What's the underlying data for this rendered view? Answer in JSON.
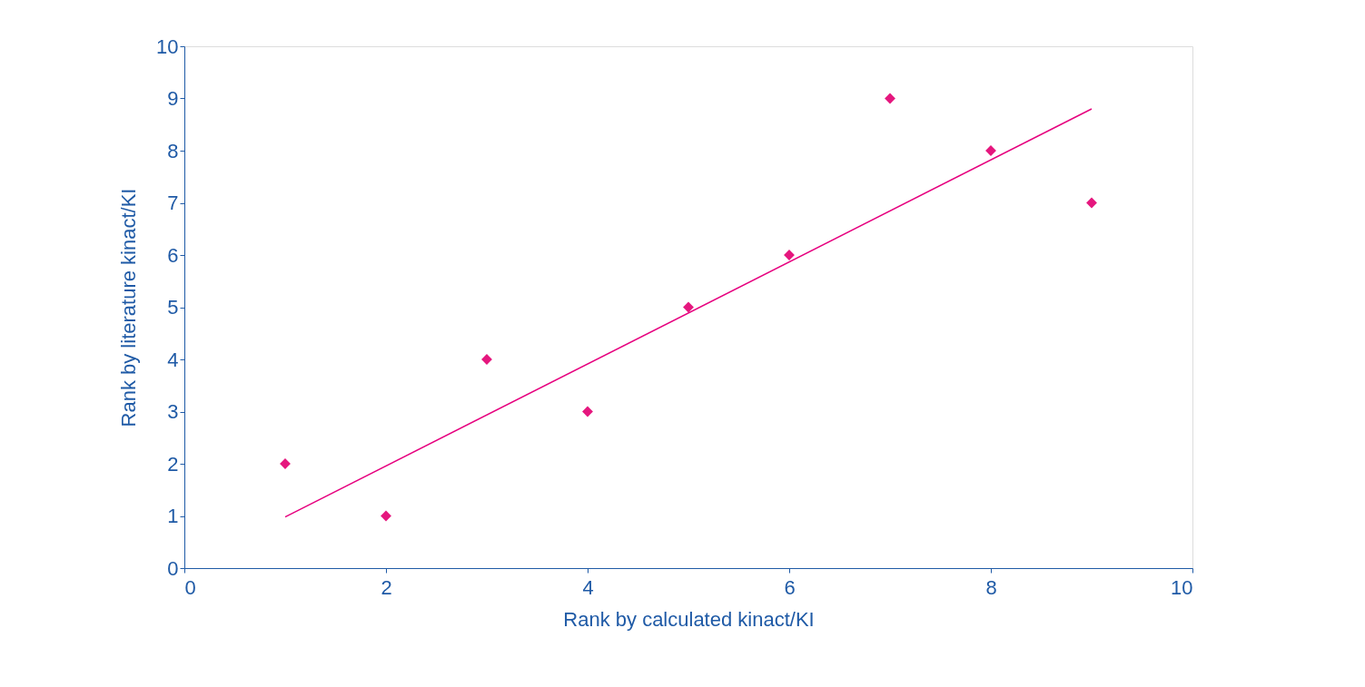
{
  "chart_data": {
    "type": "scatter",
    "xlabel": "Rank by calculated kinact/KI",
    "ylabel": "Rank by literature kinact/KI",
    "xlim": [
      0,
      10
    ],
    "xticks": [
      0,
      2,
      4,
      6,
      8,
      10
    ],
    "ylim": [
      0,
      10
    ],
    "yticks": [
      0,
      1,
      2,
      3,
      4,
      5,
      6,
      7,
      8,
      9,
      10
    ],
    "grid": false,
    "series": [
      {
        "color": "#e5177e",
        "marker": "diamond",
        "x": [
          1,
          2,
          3,
          4,
          5,
          6,
          7,
          8,
          9
        ],
        "values": [
          2,
          1,
          4,
          3,
          5,
          6,
          9,
          8,
          7
        ]
      },
      {
        "type": "line",
        "color": "#e6007e",
        "marker": "none",
        "line_style": "solid",
        "x": [
          1,
          9
        ],
        "values": [
          0.98,
          8.8
        ]
      }
    ]
  }
}
